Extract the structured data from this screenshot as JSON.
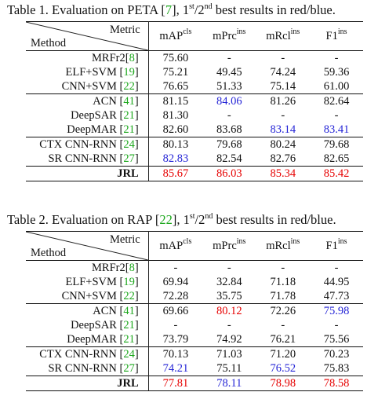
{
  "table1": {
    "caption_pre": "Table 1. Evaluation on PETA [",
    "caption_ref": "7",
    "caption_mid": "], 1",
    "caption_sup1": "st",
    "caption_slash": "/2",
    "caption_sup2": "nd",
    "caption_post": " best results in red/blue.",
    "header_metric": "Metric",
    "header_method": "Method",
    "columns": [
      {
        "base": "mAP",
        "sup": "cls"
      },
      {
        "base": "mPrc",
        "sup": "ins"
      },
      {
        "base": "mRcl",
        "sup": "ins"
      },
      {
        "base": "F1",
        "sup": "ins"
      }
    ],
    "rows": [
      {
        "name": "MRFr2",
        "ref": "8",
        "space": false,
        "values": [
          "75.60",
          "-",
          "-",
          "-"
        ],
        "colors": [
          "",
          "",
          "",
          ""
        ]
      },
      {
        "name": "ELF+SVM",
        "ref": "19",
        "space": true,
        "values": [
          "75.21",
          "49.45",
          "74.24",
          "59.36"
        ],
        "colors": [
          "",
          "",
          "",
          ""
        ]
      },
      {
        "name": "CNN+SVM",
        "ref": "22",
        "space": true,
        "values": [
          "76.65",
          "51.33",
          "75.14",
          "61.00"
        ],
        "colors": [
          "",
          "",
          "",
          ""
        ]
      },
      {
        "name": "ACN",
        "ref": "41",
        "space": true,
        "values": [
          "81.15",
          "84.06",
          "81.26",
          "82.64"
        ],
        "colors": [
          "",
          "blue",
          "",
          ""
        ]
      },
      {
        "name": "DeepSAR",
        "ref": "21",
        "space": true,
        "values": [
          "81.30",
          "-",
          "-",
          "-"
        ],
        "colors": [
          "",
          "",
          "",
          ""
        ]
      },
      {
        "name": "DeepMAR",
        "ref": "21",
        "space": true,
        "values": [
          "82.60",
          "83.68",
          "83.14",
          "83.41"
        ],
        "colors": [
          "",
          "",
          "blue",
          "blue"
        ]
      },
      {
        "name": "CTX CNN-RNN",
        "ref": "24",
        "space": true,
        "values": [
          "80.13",
          "79.68",
          "80.24",
          "79.68"
        ],
        "colors": [
          "",
          "",
          "",
          ""
        ]
      },
      {
        "name": "SR CNN-RNN",
        "ref": "27",
        "space": true,
        "values": [
          "82.83",
          "82.54",
          "82.76",
          "82.65"
        ],
        "colors": [
          "blue",
          "",
          "",
          ""
        ]
      },
      {
        "name": "JRL",
        "ref": "",
        "space": false,
        "values": [
          "85.67",
          "86.03",
          "85.34",
          "85.42"
        ],
        "colors": [
          "red",
          "red",
          "red",
          "red"
        ]
      }
    ]
  },
  "table2": {
    "caption_pre": "Table 2. Evaluation on RAP [",
    "caption_ref": "22",
    "caption_mid": "], 1",
    "caption_sup1": "st",
    "caption_slash": "/2",
    "caption_sup2": "nd",
    "caption_post": " best results in red/blue.",
    "header_metric": "Metric",
    "header_method": "Method",
    "columns": [
      {
        "base": "mAP",
        "sup": "cls"
      },
      {
        "base": "mPrc",
        "sup": "ins"
      },
      {
        "base": "mRcl",
        "sup": "ins"
      },
      {
        "base": "F1",
        "sup": "ins"
      }
    ],
    "rows": [
      {
        "name": "MRFr2",
        "ref": "8",
        "space": false,
        "values": [
          "-",
          "-",
          "-",
          "-"
        ],
        "colors": [
          "",
          "",
          "",
          ""
        ]
      },
      {
        "name": "ELF+SVM",
        "ref": "19",
        "space": true,
        "values": [
          "69.94",
          "32.84",
          "71.18",
          "44.95"
        ],
        "colors": [
          "",
          "",
          "",
          ""
        ]
      },
      {
        "name": "CNN+SVM",
        "ref": "22",
        "space": true,
        "values": [
          "72.28",
          "35.75",
          "71.78",
          "47.73"
        ],
        "colors": [
          "",
          "",
          "",
          ""
        ]
      },
      {
        "name": "ACN",
        "ref": "41",
        "space": true,
        "values": [
          "69.66",
          "80.12",
          "72.26",
          "75.98"
        ],
        "colors": [
          "",
          "red",
          "",
          "blue"
        ]
      },
      {
        "name": "DeepSAR",
        "ref": "21",
        "space": true,
        "values": [
          "-",
          "-",
          "-",
          "-"
        ],
        "colors": [
          "",
          "",
          "",
          ""
        ]
      },
      {
        "name": "DeepMAR",
        "ref": "21",
        "space": true,
        "values": [
          "73.79",
          "74.92",
          "76.21",
          "75.56"
        ],
        "colors": [
          "",
          "",
          "",
          ""
        ]
      },
      {
        "name": "CTX CNN-RNN",
        "ref": "24",
        "space": true,
        "values": [
          "70.13",
          "71.03",
          "71.20",
          "70.23"
        ],
        "colors": [
          "",
          "",
          "",
          ""
        ]
      },
      {
        "name": "SR CNN-RNN",
        "ref": "27",
        "space": true,
        "values": [
          "74.21",
          "75.11",
          "76.52",
          "75.83"
        ],
        "colors": [
          "blue",
          "",
          "blue",
          ""
        ]
      },
      {
        "name": "JRL",
        "ref": "",
        "space": false,
        "values": [
          "77.81",
          "78.11",
          "78.98",
          "78.58"
        ],
        "colors": [
          "red",
          "blue",
          "red",
          "red"
        ]
      }
    ]
  },
  "colors": {
    "red": "#e60000",
    "blue": "#2424d6",
    "citation_green": "#1ea81e",
    "text": "#111111"
  }
}
